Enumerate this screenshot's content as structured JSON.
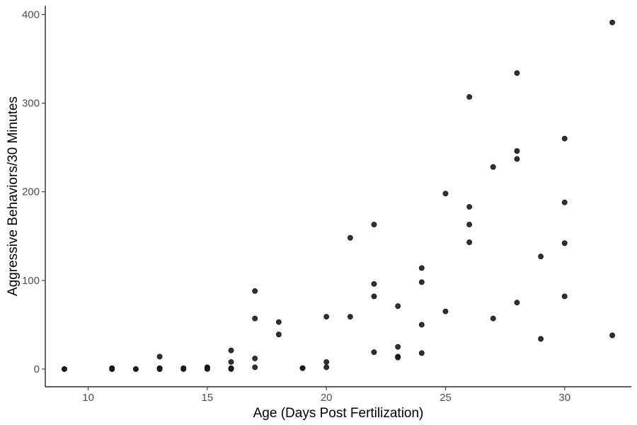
{
  "chart_data": {
    "type": "scatter",
    "title": "",
    "xlabel": "Age (Days Post Fertilization)",
    "ylabel": "Aggressive Behaviors/30 Minutes",
    "xlim": [
      8.2,
      32.8
    ],
    "ylim": [
      -20,
      410
    ],
    "xticks": [
      10,
      15,
      20,
      25,
      30
    ],
    "yticks": [
      0,
      100,
      200,
      300,
      400
    ],
    "xtick_labels": [
      "10",
      "15",
      "20",
      "25",
      "30"
    ],
    "ytick_labels": [
      "0",
      "100",
      "200",
      "300",
      "400"
    ],
    "grid": false,
    "legend": "none",
    "point_color": "#1a1a1a",
    "points": [
      {
        "x": 9,
        "y": 0
      },
      {
        "x": 9,
        "y": 0
      },
      {
        "x": 11,
        "y": 0
      },
      {
        "x": 11,
        "y": 1
      },
      {
        "x": 11,
        "y": 0
      },
      {
        "x": 12,
        "y": 0
      },
      {
        "x": 12,
        "y": 0
      },
      {
        "x": 13,
        "y": 14
      },
      {
        "x": 13,
        "y": 1
      },
      {
        "x": 13,
        "y": 0
      },
      {
        "x": 13,
        "y": 0
      },
      {
        "x": 14,
        "y": 0
      },
      {
        "x": 14,
        "y": 1
      },
      {
        "x": 15,
        "y": 2
      },
      {
        "x": 15,
        "y": 1
      },
      {
        "x": 15,
        "y": 0
      },
      {
        "x": 16,
        "y": 21
      },
      {
        "x": 16,
        "y": 8
      },
      {
        "x": 16,
        "y": 1
      },
      {
        "x": 16,
        "y": 0
      },
      {
        "x": 17,
        "y": 88
      },
      {
        "x": 17,
        "y": 57
      },
      {
        "x": 17,
        "y": 12
      },
      {
        "x": 17,
        "y": 2
      },
      {
        "x": 18,
        "y": 53
      },
      {
        "x": 18,
        "y": 39
      },
      {
        "x": 19,
        "y": 1
      },
      {
        "x": 19,
        "y": 1
      },
      {
        "x": 20,
        "y": 59
      },
      {
        "x": 20,
        "y": 8
      },
      {
        "x": 20,
        "y": 2
      },
      {
        "x": 21,
        "y": 148
      },
      {
        "x": 21,
        "y": 59
      },
      {
        "x": 22,
        "y": 163
      },
      {
        "x": 22,
        "y": 96
      },
      {
        "x": 22,
        "y": 82
      },
      {
        "x": 22,
        "y": 19
      },
      {
        "x": 23,
        "y": 71
      },
      {
        "x": 23,
        "y": 25
      },
      {
        "x": 23,
        "y": 14
      },
      {
        "x": 23,
        "y": 13
      },
      {
        "x": 24,
        "y": 114
      },
      {
        "x": 24,
        "y": 98
      },
      {
        "x": 24,
        "y": 50
      },
      {
        "x": 24,
        "y": 18
      },
      {
        "x": 25,
        "y": 198
      },
      {
        "x": 25,
        "y": 65
      },
      {
        "x": 26,
        "y": 307
      },
      {
        "x": 26,
        "y": 183
      },
      {
        "x": 26,
        "y": 163
      },
      {
        "x": 26,
        "y": 143
      },
      {
        "x": 27,
        "y": 228
      },
      {
        "x": 27,
        "y": 57
      },
      {
        "x": 28,
        "y": 334
      },
      {
        "x": 28,
        "y": 246
      },
      {
        "x": 28,
        "y": 237
      },
      {
        "x": 28,
        "y": 75
      },
      {
        "x": 29,
        "y": 127
      },
      {
        "x": 29,
        "y": 34
      },
      {
        "x": 30,
        "y": 260
      },
      {
        "x": 30,
        "y": 188
      },
      {
        "x": 30,
        "y": 142
      },
      {
        "x": 30,
        "y": 82
      },
      {
        "x": 32,
        "y": 391
      },
      {
        "x": 32,
        "y": 38
      }
    ]
  }
}
